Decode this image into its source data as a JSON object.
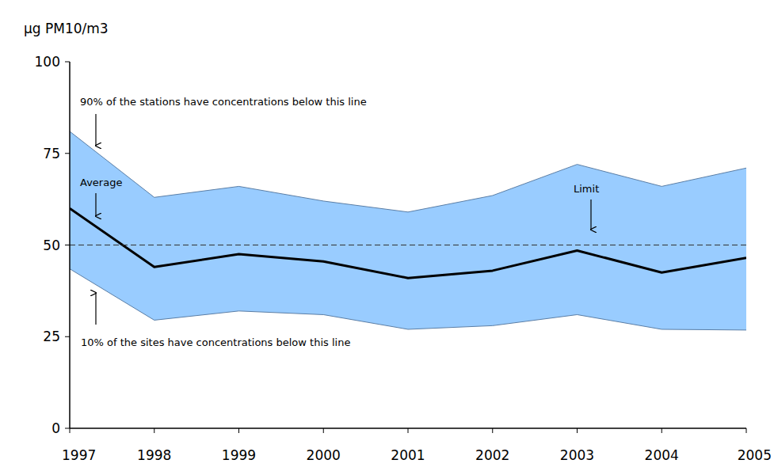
{
  "chart_data": {
    "type": "band_line",
    "y_label": "µg PM10/m3",
    "x": [
      1997,
      1998,
      1999,
      2000,
      2001,
      2002,
      2003,
      2004,
      2005
    ],
    "xlim": [
      1997,
      2005
    ],
    "xticks": [
      1997,
      1998,
      1999,
      2000,
      2001,
      2002,
      2003,
      2004,
      2005
    ],
    "ylim": [
      0,
      100
    ],
    "yticks": [
      0,
      25,
      50,
      75,
      100
    ],
    "grid": false,
    "series": [
      {
        "name": "90% of the stations have concentrations below this line",
        "type": "band_upper",
        "color": "#99ccff",
        "values": [
          81,
          63,
          66,
          62,
          59,
          63.5,
          72,
          66,
          71
        ]
      },
      {
        "name": "Average",
        "type": "line",
        "color": "#000000",
        "values": [
          60,
          44,
          47.5,
          45.5,
          41,
          43,
          48.5,
          42.5,
          46.5
        ]
      },
      {
        "name": "10% of the sites have concentrations below this line",
        "type": "band_lower",
        "color": "#99ccff",
        "values": [
          43.5,
          29.5,
          32,
          31,
          27,
          28,
          31,
          27,
          26.8
        ]
      }
    ],
    "limit": {
      "value": 50,
      "label": "Limit",
      "line_style": "dashed"
    }
  }
}
